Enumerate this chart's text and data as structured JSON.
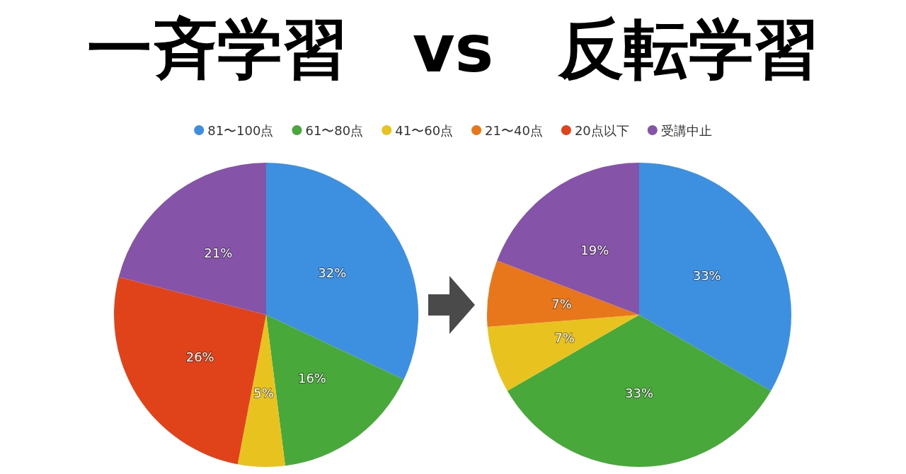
{
  "chart_data": [
    {
      "type": "pie",
      "title": "一斉学習　vs　反転学習",
      "legend": "top",
      "categories": [
        "81〜100点",
        "61〜80点",
        "41〜60点",
        "21〜40点",
        "20点以下",
        "受講中止"
      ],
      "values": [
        32,
        16,
        5,
        0,
        26,
        21
      ],
      "value_labels": [
        "32%",
        "16%",
        "5%",
        null,
        "26%",
        "21%"
      ],
      "colors": [
        "#3d8fe0",
        "#49a83a",
        "#e8c21e",
        "#e8771c",
        "#e0431a",
        "#8553a8"
      ]
    },
    {
      "type": "pie",
      "categories": [
        null,
        null,
        null,
        null,
        null,
        null
      ],
      "values": [
        33,
        33,
        7,
        7,
        0,
        19
      ],
      "value_labels": [
        "33%",
        "33%",
        "7%",
        "7%",
        null,
        "19%"
      ],
      "colors": [
        "#3d8fe0",
        "#49a83a",
        "#e8c21e",
        "#e8771c",
        "#e0431a",
        "#8553a8"
      ]
    }
  ]
}
